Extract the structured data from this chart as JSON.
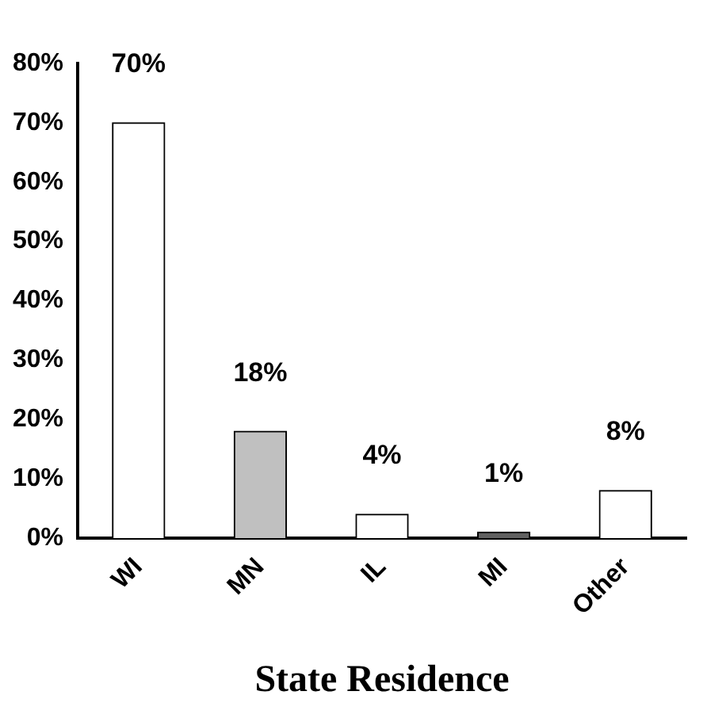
{
  "chart_data": {
    "type": "bar",
    "xlabel": "State Residence",
    "categories": [
      "WI",
      "MN",
      "IL",
      "MI",
      "Other"
    ],
    "values": [
      70,
      18,
      4,
      1,
      8
    ],
    "colors": [
      "#ffffff",
      "#c0c0c0",
      "#ffffff",
      "#606060",
      "#ffffff"
    ],
    "value_labels": [
      "70%",
      "18%",
      "4%",
      "1%",
      "8%"
    ],
    "ylim": [
      0,
      80
    ],
    "yticks": [
      {
        "value": 0,
        "label": "0%"
      },
      {
        "value": 10,
        "label": "10%"
      },
      {
        "value": 20,
        "label": "20%"
      },
      {
        "value": 30,
        "label": "30%"
      },
      {
        "value": 40,
        "label": "40%"
      },
      {
        "value": 50,
        "label": "50%"
      },
      {
        "value": 60,
        "label": "60%"
      },
      {
        "value": 70,
        "label": "70%"
      },
      {
        "value": 80,
        "label": "80%"
      }
    ],
    "grid": false,
    "legend": false
  }
}
